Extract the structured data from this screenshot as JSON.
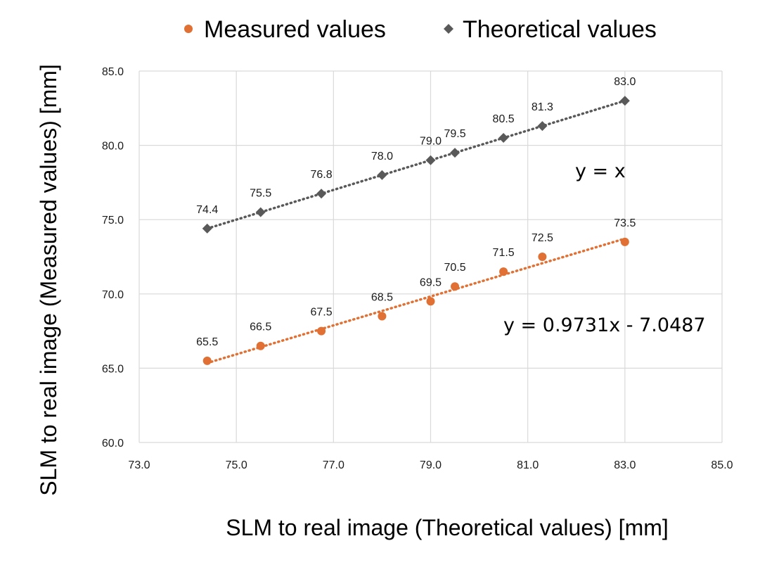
{
  "chart_data": {
    "type": "scatter",
    "xlabel": "SLM to real image (Theoretical values) [mm]",
    "ylabel": "SLM to real image (Measured values) [mm]",
    "xlim": [
      73.0,
      85.0
    ],
    "ylim": [
      60.0,
      85.0
    ],
    "xticks": [
      73.0,
      75.0,
      77.0,
      79.0,
      81.0,
      83.0,
      85.0
    ],
    "yticks": [
      60.0,
      65.0,
      70.0,
      75.0,
      80.0,
      85.0
    ],
    "xtick_labels": [
      "73.0",
      "75.0",
      "77.0",
      "79.0",
      "81.0",
      "83.0",
      "85.0"
    ],
    "ytick_labels": [
      "60.0",
      "65.0",
      "70.0",
      "75.0",
      "80.0",
      "85.0"
    ],
    "grid": true,
    "legend_position": "top",
    "series": [
      {
        "name": "Measured values",
        "marker": "circle",
        "color": "#E07033",
        "x": [
          74.4,
          75.5,
          76.75,
          78.0,
          79.0,
          79.5,
          80.5,
          81.3,
          83.0
        ],
        "y": [
          65.5,
          66.5,
          67.5,
          68.5,
          69.5,
          70.5,
          71.5,
          72.5,
          73.5
        ],
        "labels": [
          "65.5",
          "66.5",
          "67.5",
          "68.5",
          "69.5",
          "70.5",
          "71.5",
          "72.5",
          "73.5"
        ],
        "trendline": {
          "type": "linear",
          "slope": 0.9731,
          "intercept": -7.0487,
          "equation": "y = 0.9731x - 7.0487"
        }
      },
      {
        "name": "Theoretical values",
        "marker": "diamond",
        "color": "#595959",
        "x": [
          74.4,
          75.5,
          76.75,
          78.0,
          79.0,
          79.5,
          80.5,
          81.3,
          83.0
        ],
        "y": [
          74.4,
          75.5,
          76.75,
          78.0,
          79.0,
          79.5,
          80.5,
          81.3,
          83.0
        ],
        "labels": [
          "74.4",
          "75.5",
          "76.8",
          "78.0",
          "79.0",
          "79.5",
          "80.5",
          "81.3",
          "83.0"
        ],
        "trendline": {
          "type": "linear",
          "slope": 1.0,
          "intercept": 0.0,
          "equation": "y = x"
        }
      }
    ]
  }
}
